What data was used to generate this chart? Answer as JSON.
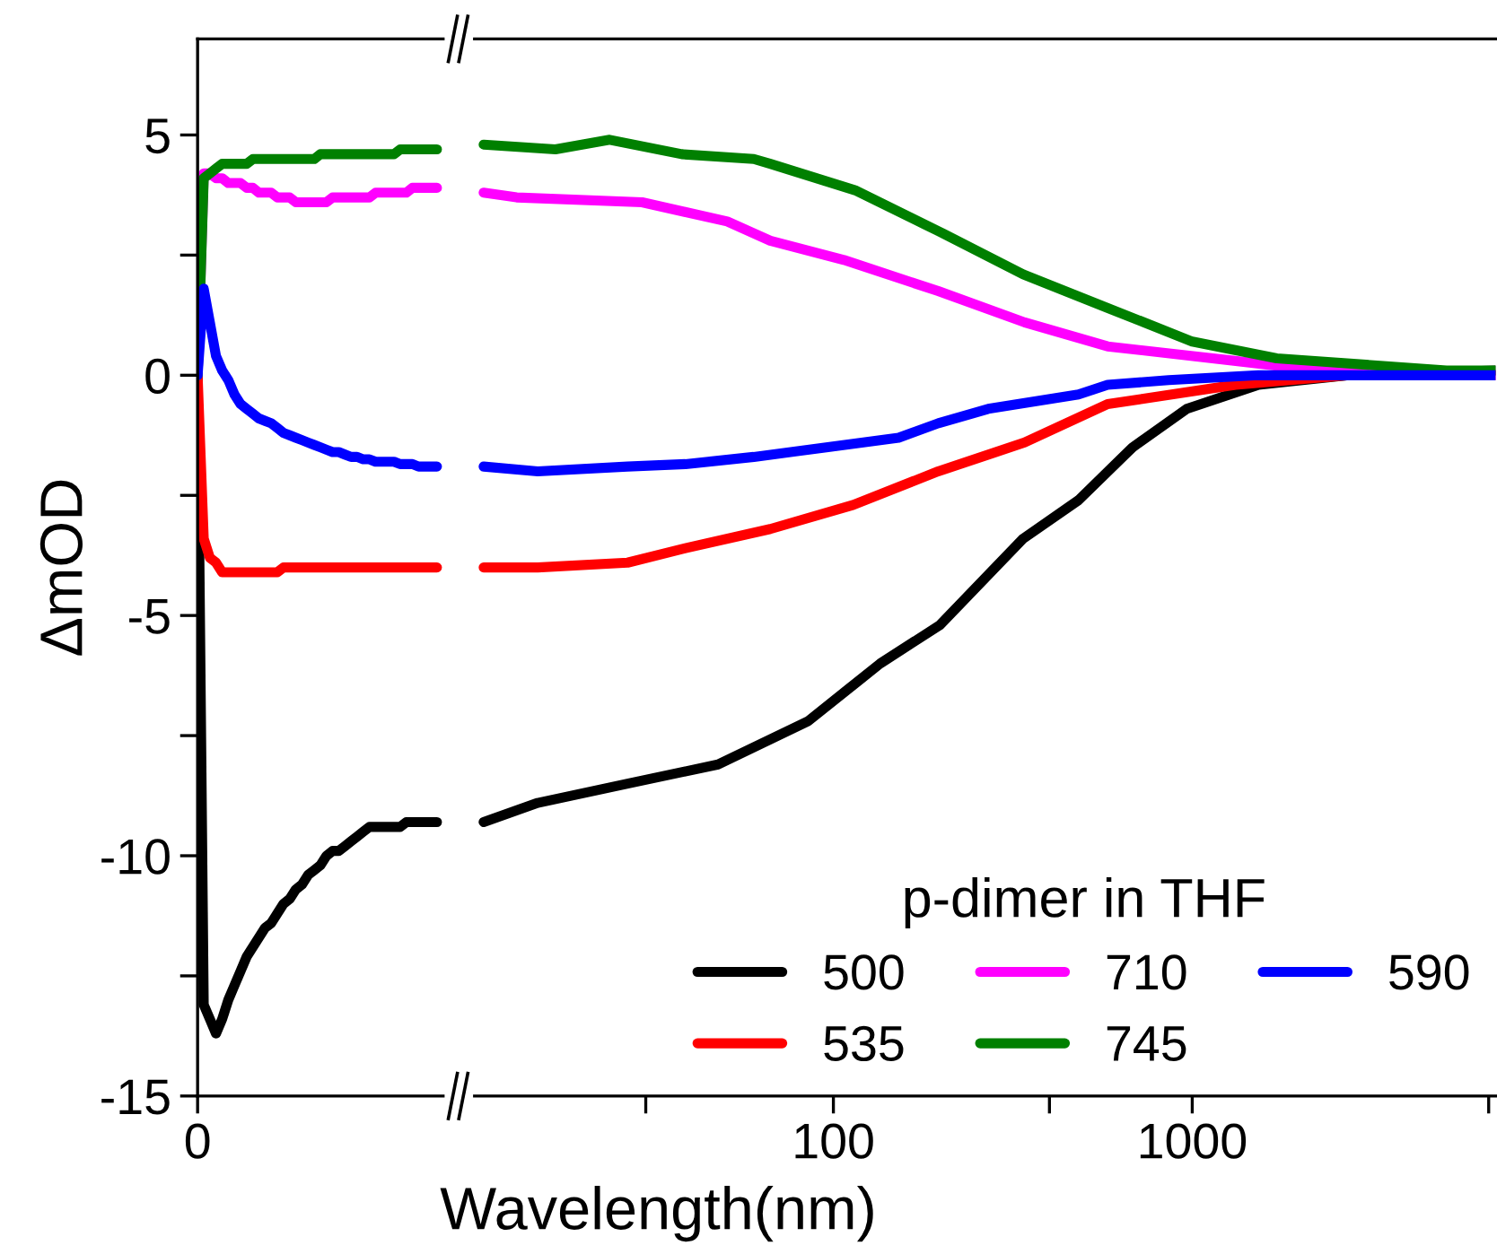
{
  "chart_data": [
    {
      "type": "line",
      "ylabel": "ΔmOD",
      "categories": [
        "0",
        null,
        null,
        null,
        null,
        null,
        null,
        null,
        null,
        null,
        null,
        null,
        null,
        null,
        null,
        null,
        null,
        null,
        null,
        null,
        null,
        null,
        null,
        null,
        null,
        null,
        null,
        null,
        null,
        null,
        null,
        null,
        null,
        null,
        null,
        null,
        null,
        null,
        null,
        null,
        null
      ],
      "ylim": [
        -15,
        7
      ],
      "yticks": [
        -15,
        {
          "value": -12.5,
          "label": null
        },
        -10,
        {
          "value": -7.5,
          "label": null
        },
        -5,
        {
          "value": -2.5,
          "label": null
        },
        0,
        {
          "value": 2.5,
          "label": null
        },
        5
      ],
      "grid": false,
      "legend": false,
      "series": [
        {
          "color": "#000000",
          "values": [
            0,
            -13.1,
            -13.4,
            -13.7,
            -13.4,
            -13.0,
            -12.7,
            -12.4,
            -12.1,
            -11.9,
            -11.7,
            -11.5,
            -11.4,
            -11.2,
            -11.0,
            -10.9,
            -10.7,
            -10.6,
            -10.4,
            -10.3,
            -10.2,
            -10.0,
            -9.9,
            -9.9,
            -9.8,
            -9.7,
            -9.6,
            -9.5,
            -9.4,
            -9.4,
            -9.4,
            -9.4,
            -9.4,
            -9.4,
            -9.3,
            -9.3,
            -9.3,
            -9.3,
            -9.3,
            -9.3,
            null
          ]
        },
        {
          "color": "#ff0000",
          "values": [
            0,
            -3.4,
            -3.8,
            -3.9,
            -4.1,
            -4.1,
            -4.1,
            -4.1,
            -4.1,
            -4.1,
            -4.1,
            -4.1,
            -4.1,
            -4.1,
            -4.0,
            -4.0,
            -4.0,
            -4.0,
            -4.0,
            -4.0,
            -4.0,
            -4.0,
            -4.0,
            -4.0,
            -4.0,
            -4.0,
            -4.0,
            -4.0,
            -4.0,
            -4.0,
            -4.0,
            -4.0,
            -4.0,
            -4.0,
            -4.0,
            -4.0,
            -4.0,
            -4.0,
            -4.0,
            -4.0,
            null
          ]
        },
        {
          "color": "#ff00ff",
          "values": [
            0,
            4.2,
            4.2,
            4.1,
            4.1,
            4.0,
            4.0,
            4.0,
            3.9,
            3.9,
            3.8,
            3.8,
            3.8,
            3.7,
            3.7,
            3.7,
            3.6,
            3.6,
            3.6,
            3.6,
            3.6,
            3.6,
            3.7,
            3.7,
            3.7,
            3.7,
            3.7,
            3.7,
            3.7,
            3.8,
            3.8,
            3.8,
            3.8,
            3.8,
            3.8,
            3.9,
            3.9,
            3.9,
            3.9,
            3.9,
            null
          ]
        },
        {
          "color": "#008000",
          "values": [
            0,
            4.1,
            4.2,
            4.3,
            4.4,
            4.4,
            4.4,
            4.4,
            4.4,
            4.5,
            4.5,
            4.5,
            4.5,
            4.5,
            4.5,
            4.5,
            4.5,
            4.5,
            4.5,
            4.5,
            4.6,
            4.6,
            4.6,
            4.6,
            4.6,
            4.6,
            4.6,
            4.6,
            4.6,
            4.6,
            4.6,
            4.6,
            4.6,
            4.7,
            4.7,
            4.7,
            4.7,
            4.7,
            4.7,
            4.7,
            null
          ]
        },
        {
          "color": "#0000ff",
          "values": [
            0,
            1.8,
            1.1,
            0.4,
            0.1,
            -0.1,
            -0.4,
            -0.6,
            -0.7,
            -0.8,
            -0.9,
            -0.95,
            -1.0,
            -1.1,
            -1.2,
            -1.25,
            -1.3,
            -1.35,
            -1.4,
            -1.45,
            -1.5,
            -1.55,
            -1.6,
            -1.6,
            -1.65,
            -1.7,
            -1.7,
            -1.75,
            -1.75,
            -1.8,
            -1.8,
            -1.8,
            -1.8,
            -1.85,
            -1.85,
            -1.85,
            -1.9,
            -1.9,
            -1.9,
            -1.9,
            null
          ]
        }
      ]
    },
    {
      "type": "line",
      "xlabel": "Wavelength(nm)",
      "legend_title": "p-dimer in THF",
      "log": "x",
      "xlim": [
        10,
        7000
      ],
      "xticks": [
        {
          "value": 30,
          "label": null
        },
        100,
        {
          "value": 400,
          "label": null
        },
        1000,
        {
          "value": 6700,
          "label": null
        }
      ],
      "ylim": [
        -15,
        7
      ],
      "tick_labels": "x",
      "grid": false,
      "legend": "bottom right",
      "series": [
        {
          "name": "500",
          "color": "#000000",
          "x": [
            10.6,
            15,
            26.7,
            47.7,
            85,
            135,
            198,
            338,
            482,
            682,
            966,
            1530,
            2730,
            7000
          ],
          "values": [
            -9.3,
            -8.9,
            -8.5,
            -8.1,
            -7.2,
            -6.0,
            -5.2,
            -3.4,
            -2.6,
            -1.5,
            -0.7,
            -0.2,
            0,
            0.1
          ]
        },
        {
          "name": "535",
          "color": "#ff0000",
          "x": [
            10.6,
            15,
            26.7,
            38.7,
            66.7,
            113.6,
            196,
            341,
            581,
            1320,
            2730,
            7000
          ],
          "values": [
            -4.0,
            -4.0,
            -3.9,
            -3.6,
            -3.2,
            -2.7,
            -2.0,
            -1.4,
            -0.6,
            -0.2,
            0,
            0
          ]
        },
        {
          "name": "710",
          "color": "#ff00ff",
          "x": [
            10.6,
            13.1,
            29.3,
            50.6,
            66.7,
            107,
            196,
            341,
            581,
            1720,
            2730,
            7000
          ],
          "values": [
            3.8,
            3.7,
            3.6,
            3.2,
            2.8,
            2.4,
            1.75,
            1.1,
            0.6,
            0.2,
            0.1,
            0
          ]
        },
        {
          "name": "745",
          "color": "#008000",
          "x": [
            10.6,
            16.8,
            23.8,
            37.8,
            60,
            66.7,
            114.9,
            196,
            338,
            581,
            1000,
            1720,
            5110,
            7000
          ],
          "values": [
            4.8,
            4.7,
            4.9,
            4.6,
            4.5,
            4.4,
            3.85,
            3.0,
            2.1,
            1.4,
            0.7,
            0.35,
            0.1,
            0.1
          ]
        },
        {
          "name": "590",
          "color": "#0000ff",
          "x": [
            10.6,
            15,
            26.7,
            38.7,
            60,
            95.5,
            152,
            196,
            270,
            482,
            581,
            860,
            1530,
            7000
          ],
          "values": [
            -1.9,
            -2.0,
            -1.9,
            -1.85,
            -1.7,
            -1.5,
            -1.3,
            -1.0,
            -0.7,
            -0.4,
            -0.2,
            -0.1,
            0,
            0
          ]
        }
      ]
    }
  ]
}
